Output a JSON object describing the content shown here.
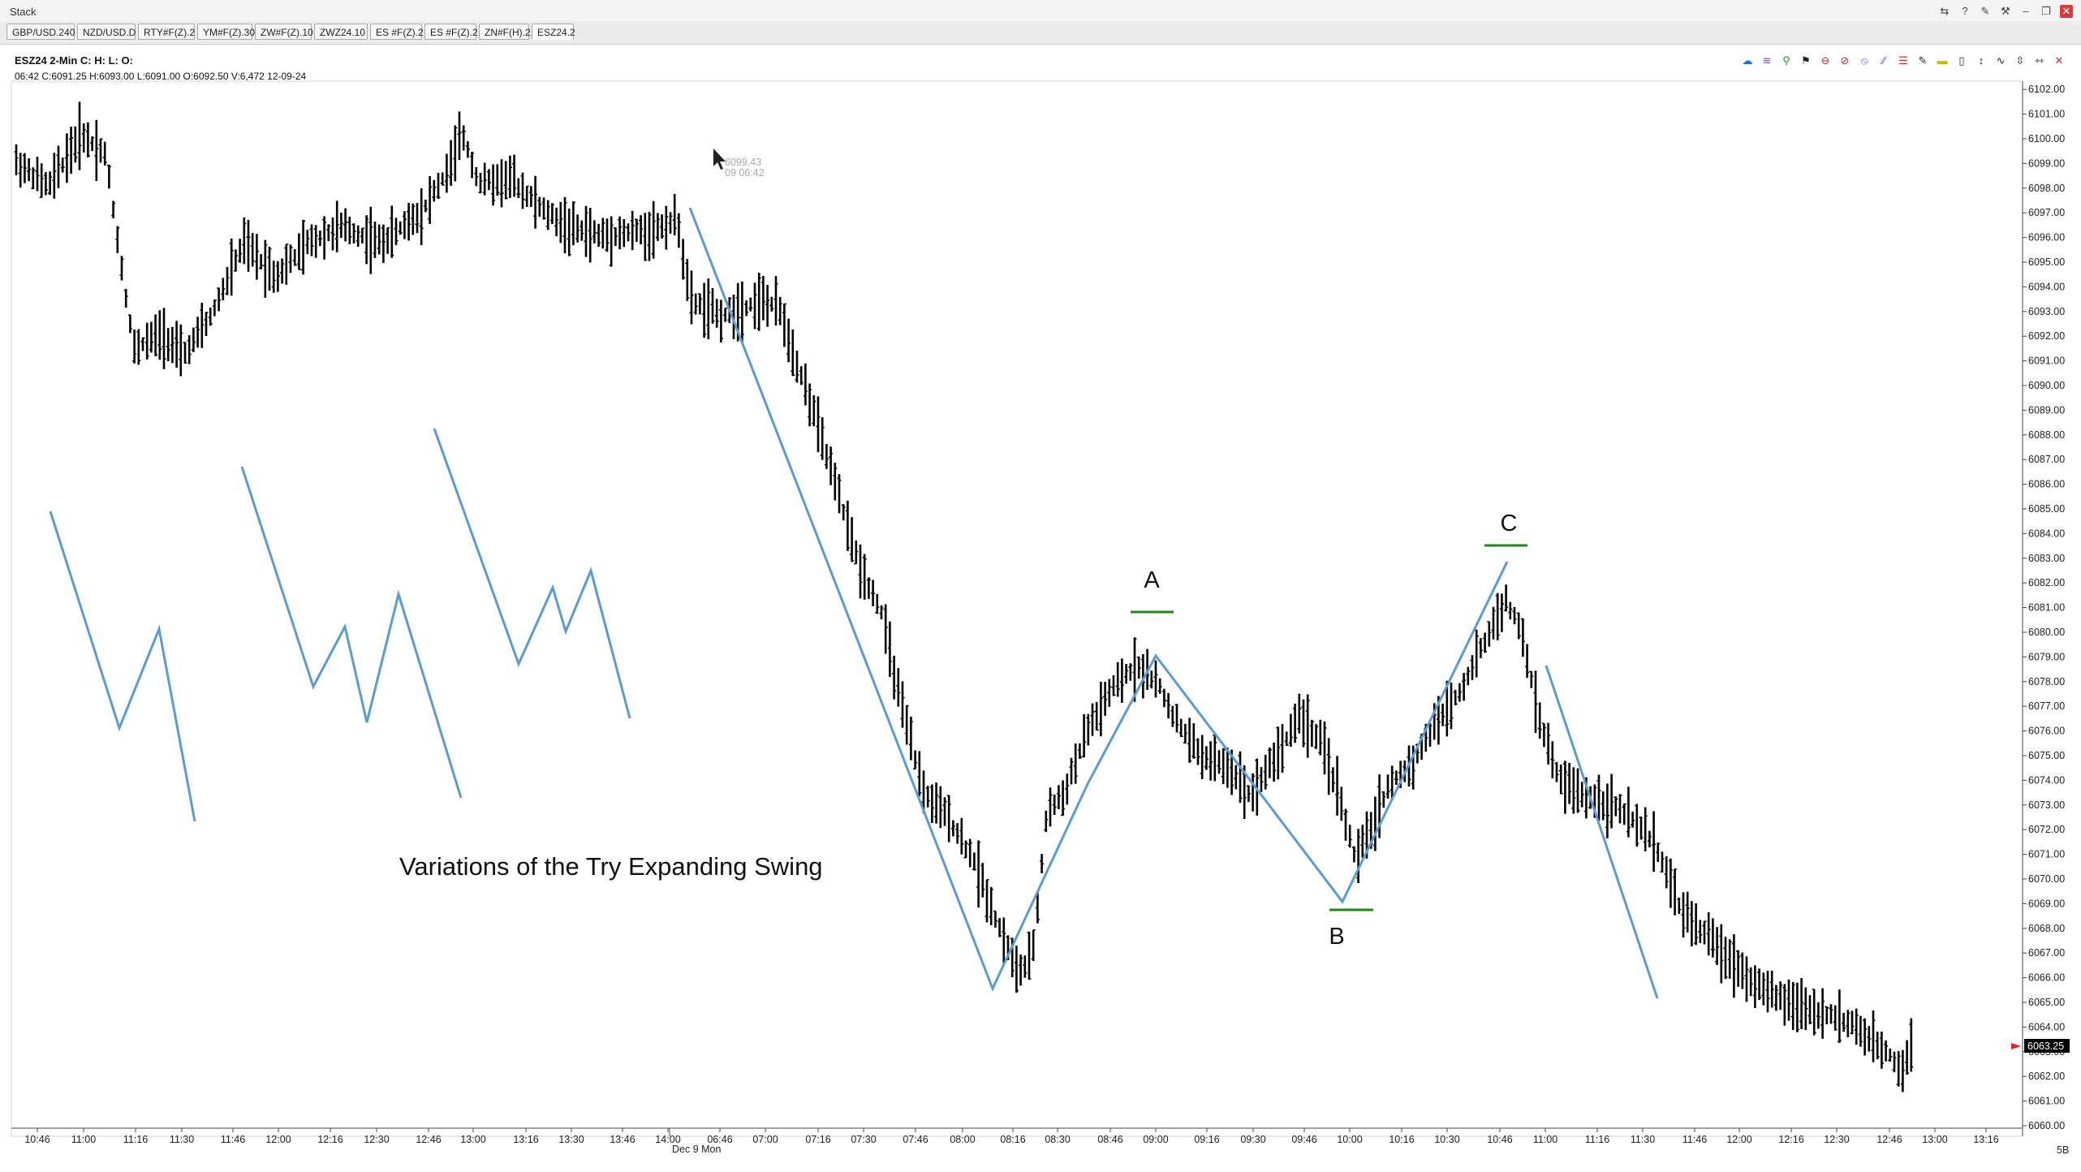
{
  "window": {
    "title": "Stack"
  },
  "tabs": [
    {
      "label": "GBP/USD.240"
    },
    {
      "label": "NZD/USD.D"
    },
    {
      "label": "RTY#F(Z).2"
    },
    {
      "label": "YM#F(Z).30"
    },
    {
      "label": "ZW#F(Z).10"
    },
    {
      "label": "ZWZ24.10"
    },
    {
      "label": "ES #F(Z).2"
    },
    {
      "label": "ES #F(Z).2"
    },
    {
      "label": "ZN#F(H).2"
    },
    {
      "label": "ESZ24.2"
    }
  ],
  "active_tab": 9,
  "chart": {
    "instrument_label": "ESZ24 2-Min  C:  H:  L:  O:",
    "bar_info": "06:42  C:6091.25  H:6093.00  L:6091.00  O:6092.50  V:6,472  12-09-24",
    "cursor_price": "6099.43",
    "cursor_time": "09 06:42",
    "annotation_text": "Variations of the Try Expanding Swing",
    "swing_labels": {
      "a": "A",
      "b": "B",
      "c": "C"
    },
    "last_price_tag": "6063.25",
    "date_label": "Dec 9 Mon",
    "corner_label": "5B",
    "price_axis": {
      "min": 6060,
      "max": 6102,
      "step": 1
    },
    "time_labels": [
      "10:46",
      "11:00",
      "11:16",
      "11:30",
      "11:46",
      "12:00",
      "12:16",
      "12:30",
      "12:46",
      "13:00",
      "13:16",
      "13:30",
      "13:46",
      "14:00",
      "06:46",
      "07:00",
      "07:16",
      "07:30",
      "07:46",
      "08:00",
      "08:16",
      "08:30",
      "08:46",
      "09:00",
      "09:16",
      "09:30",
      "09:46",
      "10:00",
      "10:16",
      "10:30",
      "10:46",
      "11:00",
      "11:16",
      "11:30",
      "11:46",
      "12:00",
      "12:16",
      "12:30",
      "12:46",
      "13:00",
      "13:16"
    ],
    "colors": {
      "bars": "#000000",
      "swing_lines": "#5b9bd5",
      "level_marks": "#1a8a1a",
      "price_tag": "#000000",
      "arrow": "#e02020"
    }
  },
  "toolbar_icons": [
    "cursor-icon",
    "crosshair-icon",
    "zoom-icon",
    "drawing-icon",
    "circle-icon",
    "cancel-icon",
    "channel-icon",
    "line-icon",
    "fib-icon",
    "pencil-icon",
    "rectangle-icon",
    "marker-icon",
    "vertical-line-icon",
    "trend-icon",
    "scale-icon",
    "properties-icon",
    "close-icon"
  ],
  "window_icons": [
    "link-icon",
    "help-icon",
    "pin-icon",
    "tools-icon",
    "minimize-icon",
    "restore-icon",
    "close-icon"
  ]
}
